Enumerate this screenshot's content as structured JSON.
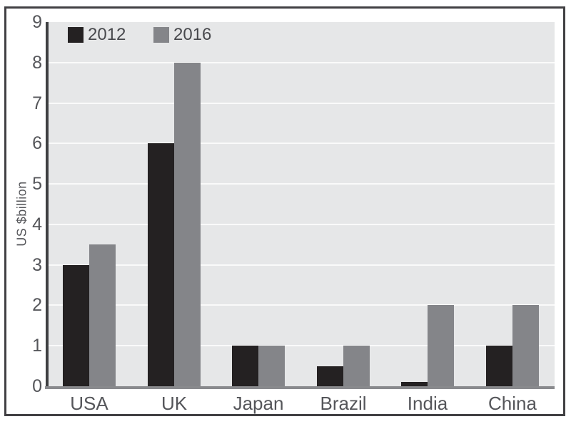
{
  "chart_data": {
    "type": "bar",
    "title": "",
    "categories": [
      "USA",
      "UK",
      "Japan",
      "Brazil",
      "India",
      "China"
    ],
    "series": [
      {
        "name": "2012",
        "color": "#242122",
        "values": [
          3,
          6,
          1,
          0.5,
          0.1,
          1
        ]
      },
      {
        "name": "2016",
        "color": "#848589",
        "values": [
          3.5,
          8,
          1,
          1,
          2,
          2
        ]
      }
    ],
    "xlabel": "",
    "ylabel": "US $billion",
    "ylim": [
      0,
      9
    ],
    "yticks": [
      0,
      1,
      2,
      3,
      4,
      5,
      6,
      7,
      8,
      9
    ],
    "grid": "horizontal",
    "legend_position": "top-left-inside-plot"
  },
  "palette": {
    "plot_background": "#e6e7e8",
    "gridline": "#fafafa",
    "y_axis_line": "#3f4042",
    "x_axis_line": "#898a8d",
    "frame_border": "#414043",
    "tick_text": "#55565a",
    "legend_text": "#48494d"
  }
}
